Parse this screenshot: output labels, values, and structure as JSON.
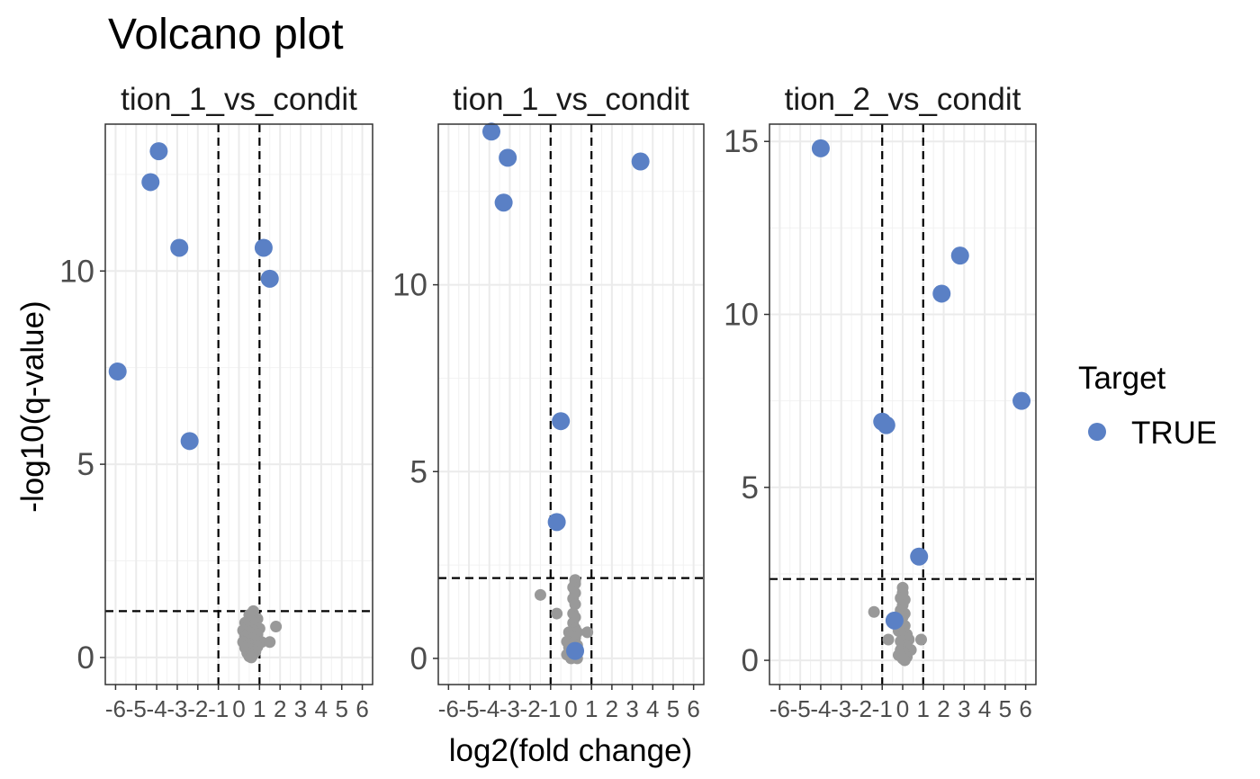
{
  "title": "Volcano plot",
  "chart_data": {
    "type": "scatter",
    "title": "Volcano plot",
    "xlabel": "log2(fold change)",
    "ylabel": "-log10(q-value)",
    "x_ticks": [
      -6,
      -5,
      -4,
      -3,
      -2,
      -1,
      0,
      1,
      2,
      3,
      4,
      5,
      6
    ],
    "xlim": [
      -6.5,
      6.5
    ],
    "grid": true,
    "legend": {
      "title": "Target",
      "placement": "right",
      "entries": [
        {
          "label": "TRUE",
          "color": "#5a80c5"
        }
      ]
    },
    "colors": {
      "target": "#5a80c5",
      "non_target": "#999999",
      "panel_border": "#333333",
      "grid": "#ebebeb"
    },
    "panels": [
      {
        "strip": "tion_1_vs_condit",
        "ylim": [
          -0.7,
          13.8
        ],
        "y_ticks": [
          0,
          5,
          10
        ],
        "thresholds": {
          "x": [
            -1,
            1
          ],
          "y": 1.2
        },
        "targets": [
          [
            -3.9,
            13.1
          ],
          [
            -4.3,
            12.3
          ],
          [
            -2.9,
            10.6
          ],
          [
            1.2,
            10.6
          ],
          [
            1.5,
            9.8
          ],
          [
            -5.9,
            7.4
          ],
          [
            -2.4,
            5.6
          ]
        ],
        "non_targets": [
          [
            0.7,
            1.2
          ],
          [
            0.5,
            1.1
          ],
          [
            0.9,
            1.0
          ],
          [
            0.6,
            0.95
          ],
          [
            0.3,
            0.9
          ],
          [
            0.8,
            0.88
          ],
          [
            0.4,
            0.8
          ],
          [
            1.0,
            0.75
          ],
          [
            0.2,
            0.7
          ],
          [
            0.7,
            0.7
          ],
          [
            0.5,
            0.65
          ],
          [
            0.9,
            0.6
          ],
          [
            0.3,
            0.55
          ],
          [
            0.6,
            0.5
          ],
          [
            0.8,
            0.45
          ],
          [
            0.4,
            0.45
          ],
          [
            1.1,
            0.4
          ],
          [
            0.2,
            0.4
          ],
          [
            0.5,
            0.35
          ],
          [
            0.7,
            0.3
          ],
          [
            0.9,
            0.28
          ],
          [
            0.3,
            0.25
          ],
          [
            0.6,
            0.2
          ],
          [
            0.8,
            0.15
          ],
          [
            0.4,
            0.12
          ],
          [
            0.7,
            0.08
          ],
          [
            0.5,
            0.03
          ],
          [
            0.6,
            0.0
          ],
          [
            1.5,
            0.4
          ],
          [
            1.8,
            0.8
          ]
        ]
      },
      {
        "strip": "tion_1_vs_condit",
        "ylim": [
          -0.7,
          14.3
        ],
        "y_ticks": [
          0,
          5,
          10
        ],
        "thresholds": {
          "x": [
            -1,
            1
          ],
          "y": 2.15
        },
        "targets": [
          [
            -3.9,
            14.1
          ],
          [
            -3.1,
            13.4
          ],
          [
            3.4,
            13.3
          ],
          [
            -3.3,
            12.2
          ],
          [
            -0.5,
            6.35
          ],
          [
            -0.7,
            3.65
          ],
          [
            0.2,
            0.2
          ]
        ],
        "non_targets": [
          [
            0.2,
            2.1
          ],
          [
            0.2,
            2.0
          ],
          [
            0.1,
            1.9
          ],
          [
            0.2,
            1.75
          ],
          [
            0.1,
            1.6
          ],
          [
            0.2,
            1.45
          ],
          [
            -1.5,
            1.7
          ],
          [
            -0.7,
            1.2
          ],
          [
            0.1,
            1.2
          ],
          [
            0.2,
            1.1
          ],
          [
            0.1,
            0.95
          ],
          [
            0.2,
            0.8
          ],
          [
            -0.1,
            0.7
          ],
          [
            0.3,
            0.7
          ],
          [
            0.8,
            0.7
          ],
          [
            0.0,
            0.6
          ],
          [
            0.2,
            0.55
          ],
          [
            -0.2,
            0.45
          ],
          [
            0.1,
            0.4
          ],
          [
            0.3,
            0.35
          ],
          [
            -0.1,
            0.3
          ],
          [
            0.0,
            0.2
          ],
          [
            0.2,
            0.15
          ],
          [
            -0.2,
            0.1
          ],
          [
            0.1,
            0.05
          ],
          [
            0.0,
            0.0
          ],
          [
            0.3,
            0.0
          ]
        ]
      },
      {
        "strip": "tion_2_vs_condit",
        "ylim": [
          -0.7,
          15.5
        ],
        "y_ticks": [
          0,
          5,
          10,
          15
        ],
        "thresholds": {
          "x": [
            -1,
            1
          ],
          "y": 2.35
        },
        "targets": [
          [
            -4.0,
            14.8
          ],
          [
            2.8,
            11.7
          ],
          [
            1.9,
            10.6
          ],
          [
            5.8,
            7.5
          ],
          [
            -1.0,
            6.9
          ],
          [
            -0.8,
            6.8
          ],
          [
            0.8,
            3.0
          ],
          [
            -0.4,
            1.15
          ]
        ],
        "non_targets": [
          [
            0.0,
            2.1
          ],
          [
            0.0,
            1.95
          ],
          [
            -0.1,
            1.8
          ],
          [
            0.1,
            1.75
          ],
          [
            0.0,
            1.6
          ],
          [
            -0.1,
            1.45
          ],
          [
            0.1,
            1.35
          ],
          [
            -1.4,
            1.4
          ],
          [
            0.0,
            1.25
          ],
          [
            -0.1,
            1.1
          ],
          [
            0.1,
            1.0
          ],
          [
            0.0,
            0.9
          ],
          [
            -0.2,
            0.85
          ],
          [
            0.2,
            0.75
          ],
          [
            0.0,
            0.7
          ],
          [
            -0.7,
            0.6
          ],
          [
            0.3,
            0.6
          ],
          [
            0.9,
            0.6
          ],
          [
            -0.1,
            0.55
          ],
          [
            0.1,
            0.45
          ],
          [
            0.0,
            0.4
          ],
          [
            0.2,
            0.35
          ],
          [
            -0.1,
            0.3
          ],
          [
            0.4,
            0.3
          ],
          [
            0.0,
            0.25
          ],
          [
            0.1,
            0.2
          ],
          [
            -0.2,
            0.15
          ],
          [
            0.2,
            0.1
          ],
          [
            0.0,
            0.05
          ],
          [
            0.1,
            0.0
          ]
        ]
      }
    ]
  }
}
